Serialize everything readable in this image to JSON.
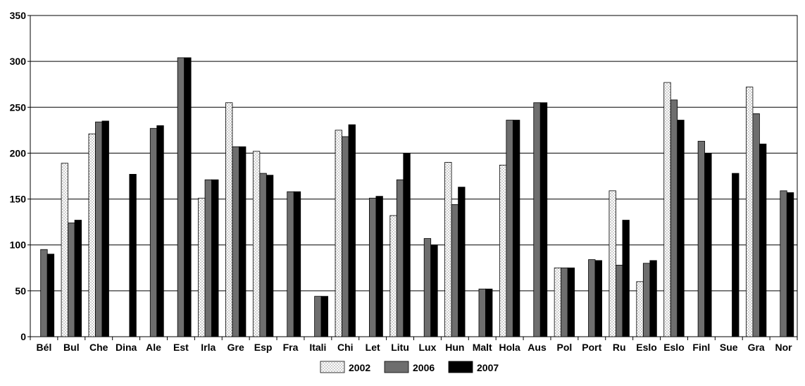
{
  "chart_data": {
    "type": "bar",
    "categories": [
      "Bél",
      "Bul",
      "Che",
      "Dina",
      "Ale",
      "Est",
      "Irla",
      "Gre",
      "Esp",
      "Fra",
      "Itali",
      "Chi",
      "Let",
      "Litu",
      "Lux",
      "Hun",
      "Malt",
      "Hola",
      "Aus",
      "Pol",
      "Port",
      "Ru",
      "Eslo",
      "Eslo",
      "Finl",
      "Sue",
      "Gra",
      "Nor"
    ],
    "series": [
      {
        "name": "2002",
        "values": [
          null,
          189,
          221,
          null,
          null,
          null,
          151,
          255,
          202,
          null,
          null,
          225,
          null,
          132,
          null,
          190,
          null,
          187,
          null,
          75,
          null,
          159,
          60,
          277,
          null,
          null,
          272,
          null
        ]
      },
      {
        "name": "2006",
        "values": [
          95,
          124,
          234,
          null,
          227,
          304,
          171,
          207,
          178,
          158,
          44,
          218,
          151,
          171,
          107,
          144,
          52,
          236,
          255,
          75,
          84,
          78,
          80,
          258,
          213,
          null,
          243,
          159
        ]
      },
      {
        "name": "2007",
        "values": [
          90,
          127,
          235,
          177,
          230,
          304,
          171,
          207,
          176,
          158,
          44,
          231,
          153,
          200,
          100,
          163,
          52,
          236,
          255,
          75,
          83,
          127,
          83,
          236,
          200,
          178,
          210,
          157
        ]
      }
    ],
    "ylim": [
      0,
      350
    ],
    "yticks": [
      0,
      50,
      100,
      150,
      200,
      250,
      300,
      350
    ],
    "grid": true,
    "legend_position": "bottom-center",
    "colors": {
      "2002": "#ffffff",
      "2006": "#6e6e6e",
      "2007": "#000000"
    }
  }
}
